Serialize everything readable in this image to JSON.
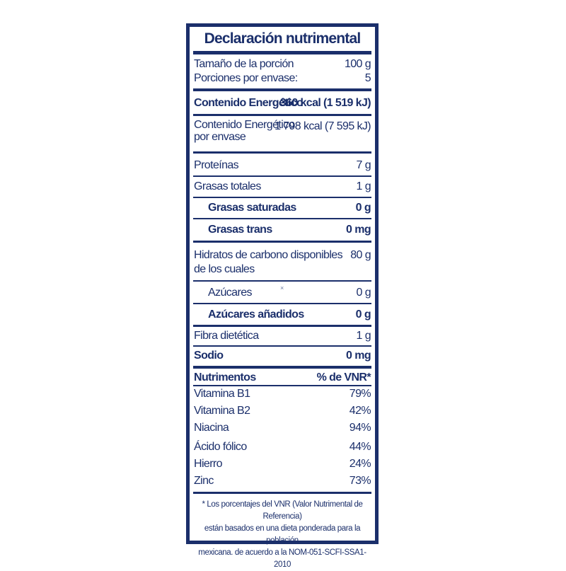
{
  "title": "Declaración nutrimental",
  "serving": {
    "size_label": "Tamaño de la porción",
    "size_value": "100 g",
    "count_label": "Porciones por envase:",
    "count_value": "5"
  },
  "energy": {
    "label": "Contenido Energético",
    "value": "360 kcal (1 519 kJ)",
    "package_label_line1": "Contenido Energético",
    "package_label_line2": "por envase",
    "package_value": "1 798 kcal (7 595 kJ)"
  },
  "nutrients": {
    "protein_label": "Proteínas",
    "protein_value": "7 g",
    "fat_label": "Grasas totales",
    "fat_value": "1 g",
    "sat_fat_label": "Grasas saturadas",
    "sat_fat_value": "0 g",
    "trans_fat_label": "Grasas trans",
    "trans_fat_value": "0 mg",
    "carbs_label_line1": "Hidratos de carbono disponibles",
    "carbs_label_line2": "de los cuales",
    "carbs_value": "80 g",
    "sugars_label": "Azúcares",
    "sugars_value": "0 g",
    "added_sugars_label": "Azúcares añadidos",
    "added_sugars_value": "0 g",
    "fiber_label": "Fibra dietética",
    "fiber_value": "1 g",
    "sodium_label": "Sodio",
    "sodium_value": "0 mg"
  },
  "vitamins": {
    "header_label": "Nutrimentos",
    "header_value": "% de VNR*",
    "items": [
      {
        "label": "Vitamina B1",
        "value": "79%"
      },
      {
        "label": "Vitamina B2",
        "value": "42%"
      },
      {
        "label": "Niacina",
        "value": "94%"
      },
      {
        "label": "Ácido fólico",
        "value": "44%"
      },
      {
        "label": "Hierro",
        "value": "24%"
      },
      {
        "label": "Zinc",
        "value": "73%"
      }
    ]
  },
  "footnote": {
    "line1": "* Los porcentajes del VNR (Valor Nutrimental de Referencia)",
    "line2": "están basados en una dieta ponderada para la población",
    "line3": "mexicana. de acuerdo a la NOM-051-SCFI-SSA1-2010"
  },
  "marker_glyph": "×",
  "colors": {
    "ink": "#1b2f6b",
    "background": "#ffffff"
  }
}
